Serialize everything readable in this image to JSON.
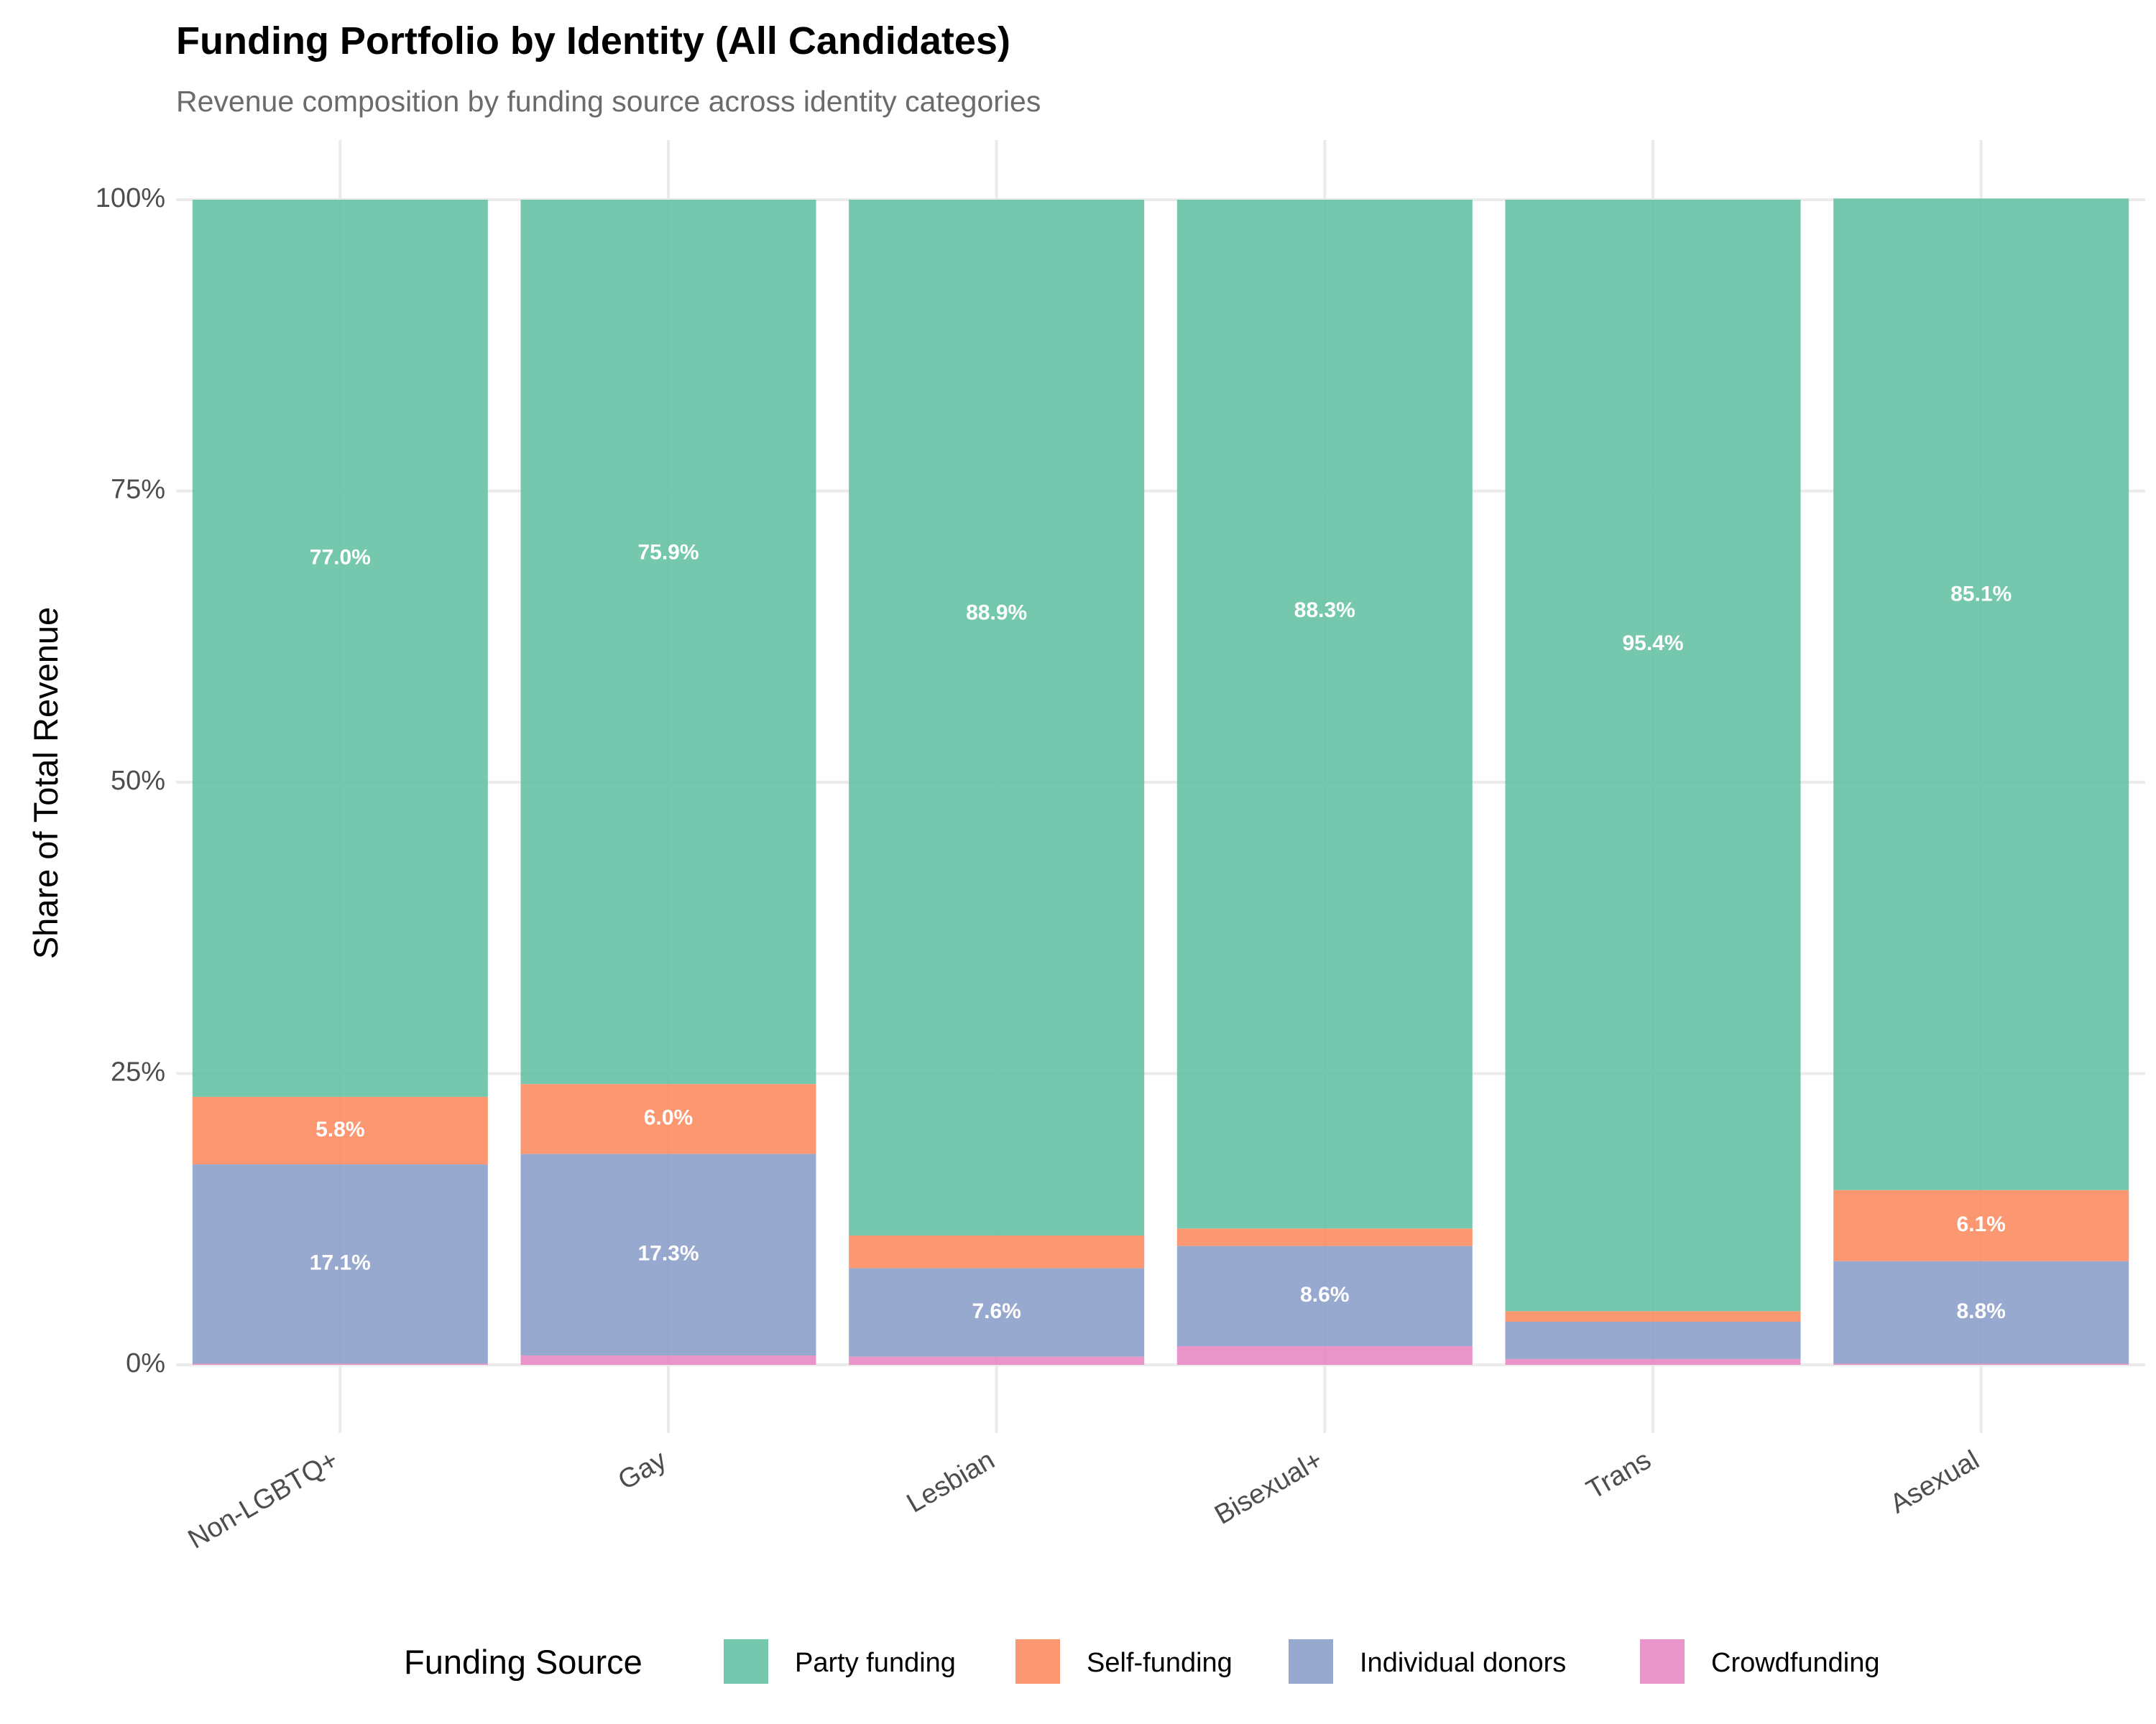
{
  "chart_data": {
    "type": "bar",
    "stacked": true,
    "normalized": true,
    "title": "Funding Portfolio by Identity (All Candidates)",
    "subtitle": "Revenue composition by funding source across identity categories",
    "xlabel": "",
    "ylabel": "Share of Total Revenue",
    "ylim": [
      0,
      100
    ],
    "yticks": [
      {
        "value": 0,
        "label": "0%"
      },
      {
        "value": 25,
        "label": "25%"
      },
      {
        "value": 50,
        "label": "50%"
      },
      {
        "value": 75,
        "label": "75%"
      },
      {
        "value": 100,
        "label": "100%"
      }
    ],
    "categories": [
      "Non-LGBTQ+",
      "Gay",
      "Lesbian",
      "Bisexual+",
      "Trans",
      "Asexual"
    ],
    "series": [
      {
        "name": "Crowdfunding",
        "color": "#e78ac3",
        "values": [
          0.1,
          0.8,
          0.7,
          1.6,
          0.5,
          0.1
        ],
        "labels": [
          "",
          "",
          "",
          "",
          "",
          ""
        ]
      },
      {
        "name": "Individual donors",
        "color": "#8da0cb",
        "values": [
          17.1,
          17.3,
          7.6,
          8.6,
          3.2,
          8.8
        ],
        "labels": [
          "17.1%",
          "17.3%",
          "7.6%",
          "8.6%",
          "",
          "8.8%"
        ]
      },
      {
        "name": "Self-funding",
        "color": "#fc8d62",
        "values": [
          5.8,
          6.0,
          2.8,
          1.5,
          0.9,
          6.1
        ],
        "labels": [
          "5.8%",
          "6.0%",
          "",
          "",
          "",
          "6.1%"
        ]
      },
      {
        "name": "Party funding",
        "color": "#66c2a5",
        "values": [
          77.0,
          75.9,
          88.9,
          88.3,
          95.4,
          85.1
        ],
        "labels": [
          "77.0%",
          "75.9%",
          "88.9%",
          "88.3%",
          "95.4%",
          "85.1%"
        ]
      }
    ],
    "legend": {
      "title": "Funding Source",
      "position": "bottom",
      "order": [
        "Party funding",
        "Self-funding",
        "Individual donors",
        "Crowdfunding"
      ]
    },
    "grid": true
  }
}
